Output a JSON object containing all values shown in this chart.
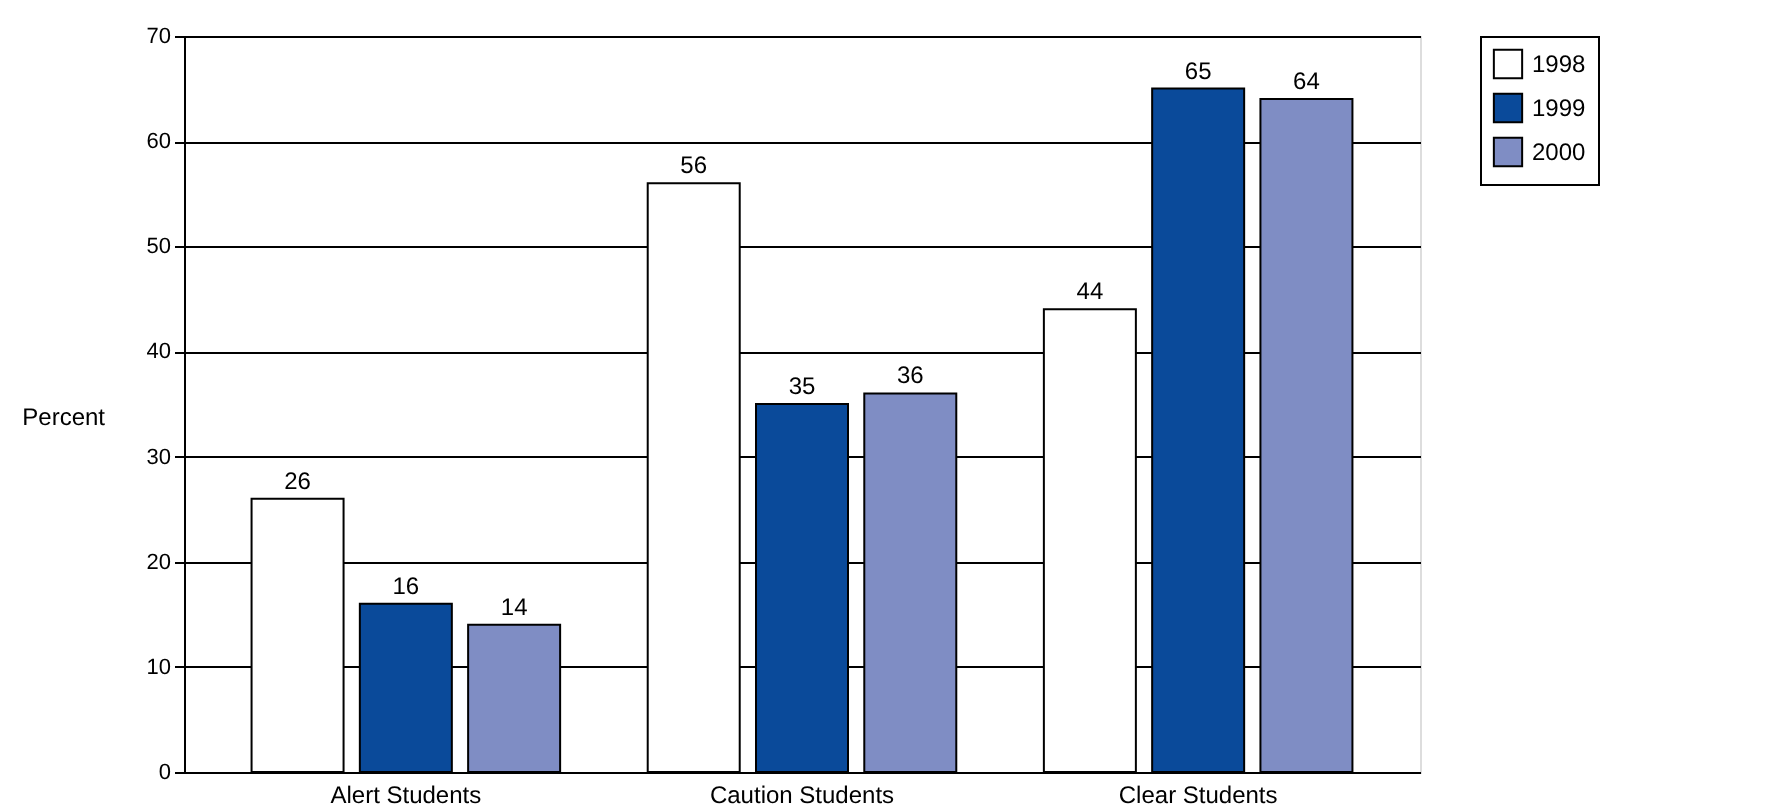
{
  "chart_data": {
    "type": "bar",
    "ylabel": "Percent",
    "categories": [
      "Alert Students",
      "Caution Students",
      "Clear Students"
    ],
    "series": [
      {
        "name": "1998",
        "color": "#ffffff",
        "values": [
          26,
          56,
          44
        ]
      },
      {
        "name": "1999",
        "color": "#0a4a9a",
        "values": [
          16,
          35,
          65
        ]
      },
      {
        "name": "2000",
        "color": "#7f8dc4",
        "values": [
          14,
          36,
          64
        ]
      }
    ],
    "ylim": [
      0,
      70
    ],
    "yticks": [
      0,
      10,
      20,
      30,
      40,
      50,
      60,
      70
    ],
    "grid": "y",
    "legend": "right",
    "data_labels": true
  }
}
